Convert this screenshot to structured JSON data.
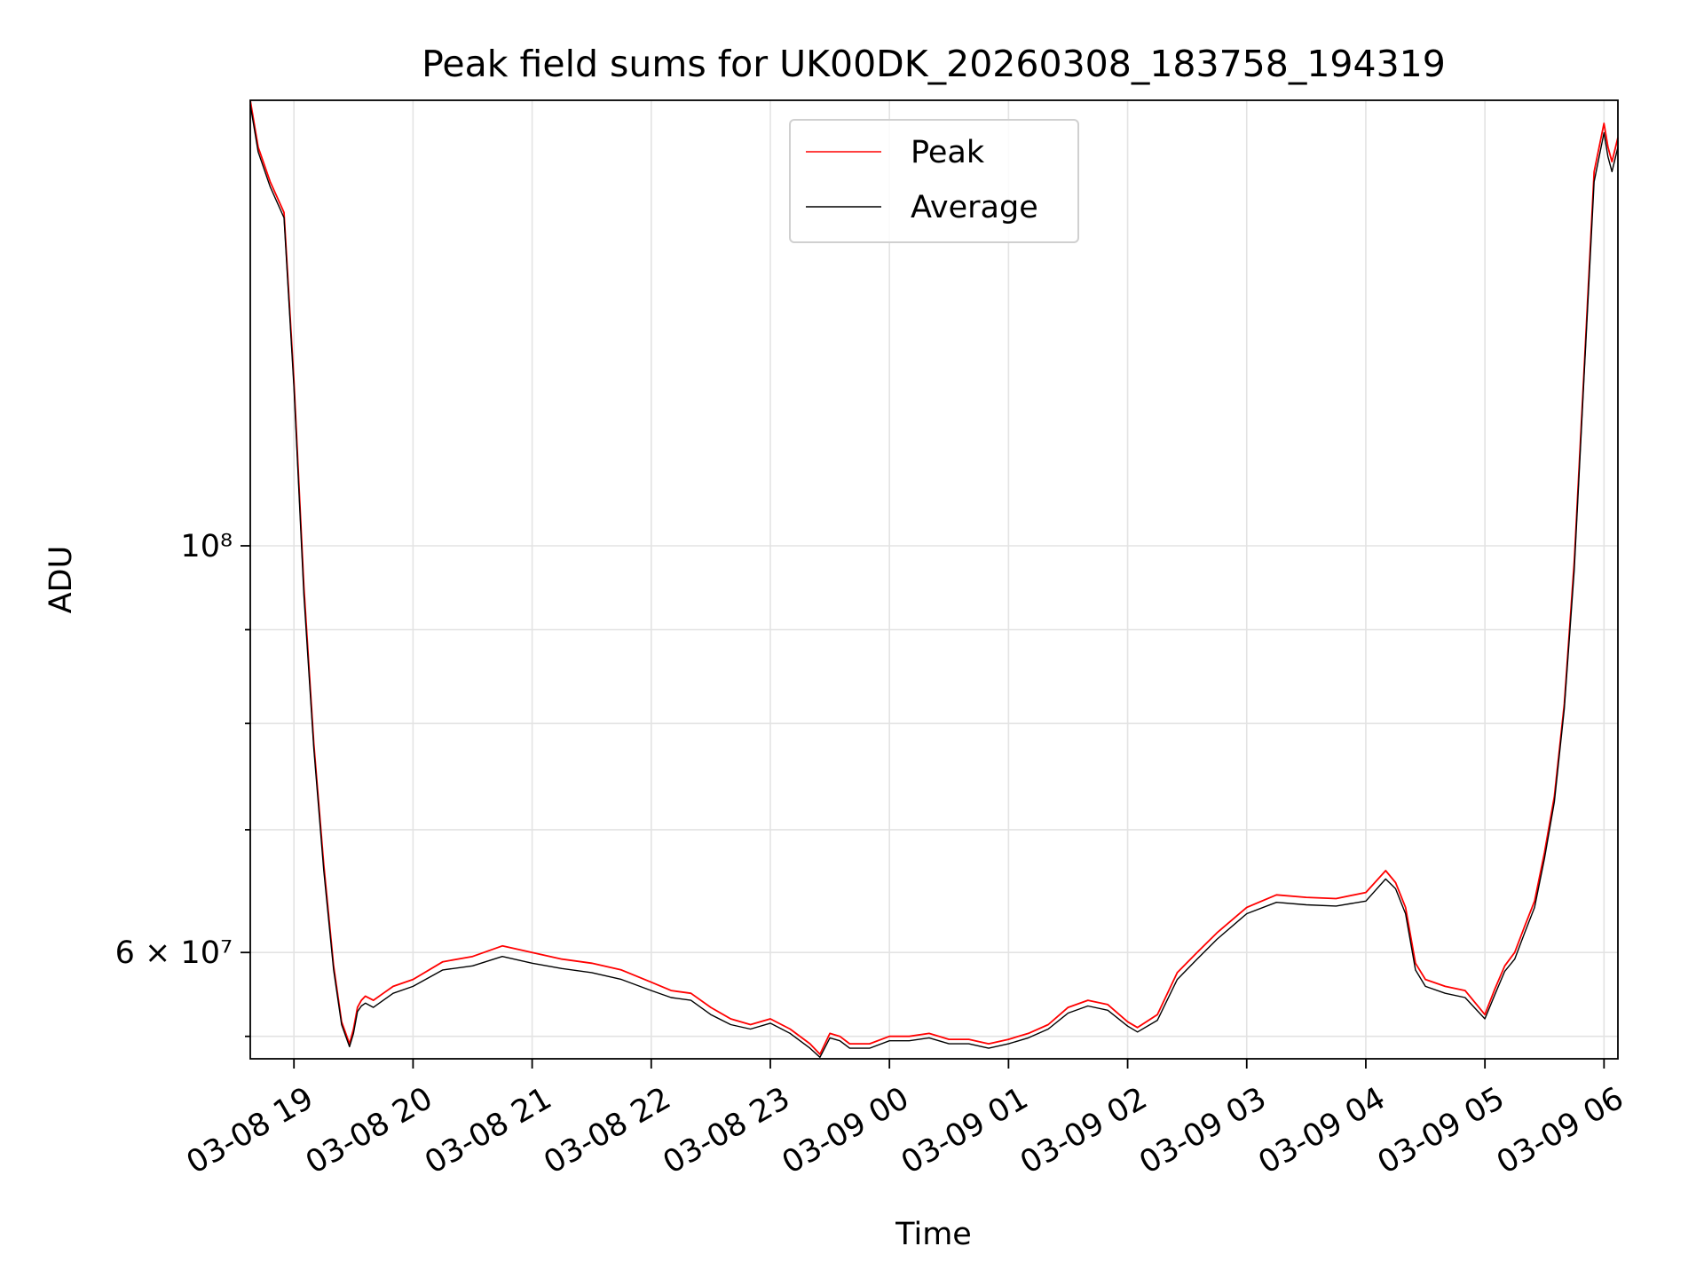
{
  "chart_data": {
    "type": "line",
    "title": "Peak field sums for UK00DK_20260308_183758_194319",
    "xlabel": "Time",
    "ylabel": "ADU",
    "y_scale": "log",
    "grid": true,
    "legend_position": "upper center",
    "xlim": [
      "2026-03-08 18:38",
      "2026-03-09 06:07"
    ],
    "ylim": [
      52500000,
      175000000
    ],
    "x_ticks": [
      {
        "value": "2026-03-08 19:00",
        "label": "03-08 19"
      },
      {
        "value": "2026-03-08 20:00",
        "label": "03-08 20"
      },
      {
        "value": "2026-03-08 21:00",
        "label": "03-08 21"
      },
      {
        "value": "2026-03-08 22:00",
        "label": "03-08 22"
      },
      {
        "value": "2026-03-08 23:00",
        "label": "03-08 23"
      },
      {
        "value": "2026-03-09 00:00",
        "label": "03-09 00"
      },
      {
        "value": "2026-03-09 01:00",
        "label": "03-09 01"
      },
      {
        "value": "2026-03-09 02:00",
        "label": "03-09 02"
      },
      {
        "value": "2026-03-09 03:00",
        "label": "03-09 03"
      },
      {
        "value": "2026-03-09 04:00",
        "label": "03-09 04"
      },
      {
        "value": "2026-03-09 05:00",
        "label": "03-09 05"
      },
      {
        "value": "2026-03-09 06:00",
        "label": "03-09 06"
      }
    ],
    "y_ticks_major": [
      {
        "value": 60000000,
        "label": "6 × 10⁷"
      },
      {
        "value": 100000000,
        "label": "10⁸"
      }
    ],
    "y_ticks_minor": [
      54000000,
      70000000,
      80000000,
      90000000
    ],
    "colors": {
      "peak": "#ff0000",
      "average": "#000000"
    },
    "series": [
      {
        "name": "Peak",
        "color": "#ff0000",
        "x": [
          "2026-03-08 18:38",
          "2026-03-08 18:42",
          "2026-03-08 18:48",
          "2026-03-08 18:55",
          "2026-03-08 19:00",
          "2026-03-08 19:05",
          "2026-03-08 19:10",
          "2026-03-08 19:15",
          "2026-03-08 19:20",
          "2026-03-08 19:24",
          "2026-03-08 19:28",
          "2026-03-08 19:30",
          "2026-03-08 19:32",
          "2026-03-08 19:34",
          "2026-03-08 19:36",
          "2026-03-08 19:40",
          "2026-03-08 19:45",
          "2026-03-08 19:50",
          "2026-03-08 20:00",
          "2026-03-08 20:15",
          "2026-03-08 20:30",
          "2026-03-08 20:45",
          "2026-03-08 21:00",
          "2026-03-08 21:15",
          "2026-03-08 21:30",
          "2026-03-08 21:45",
          "2026-03-08 22:00",
          "2026-03-08 22:10",
          "2026-03-08 22:20",
          "2026-03-08 22:30",
          "2026-03-08 22:40",
          "2026-03-08 22:50",
          "2026-03-08 23:00",
          "2026-03-08 23:10",
          "2026-03-08 23:20",
          "2026-03-08 23:25",
          "2026-03-08 23:30",
          "2026-03-08 23:35",
          "2026-03-08 23:40",
          "2026-03-08 23:50",
          "2026-03-09 00:00",
          "2026-03-09 00:10",
          "2026-03-09 00:20",
          "2026-03-09 00:30",
          "2026-03-09 00:40",
          "2026-03-09 00:50",
          "2026-03-09 01:00",
          "2026-03-09 01:10",
          "2026-03-09 01:20",
          "2026-03-09 01:30",
          "2026-03-09 01:40",
          "2026-03-09 01:50",
          "2026-03-09 02:00",
          "2026-03-09 02:05",
          "2026-03-09 02:15",
          "2026-03-09 02:25",
          "2026-03-09 02:35",
          "2026-03-09 02:45",
          "2026-03-09 03:00",
          "2026-03-09 03:15",
          "2026-03-09 03:30",
          "2026-03-09 03:45",
          "2026-03-09 04:00",
          "2026-03-09 04:10",
          "2026-03-09 04:15",
          "2026-03-09 04:20",
          "2026-03-09 04:25",
          "2026-03-09 04:30",
          "2026-03-09 04:40",
          "2026-03-09 04:50",
          "2026-03-09 05:00",
          "2026-03-09 05:05",
          "2026-03-09 05:10",
          "2026-03-09 05:15",
          "2026-03-09 05:20",
          "2026-03-09 05:25",
          "2026-03-09 05:30",
          "2026-03-09 05:35",
          "2026-03-09 05:40",
          "2026-03-09 05:45",
          "2026-03-09 05:50",
          "2026-03-09 05:55",
          "2026-03-09 06:00",
          "2026-03-09 06:02",
          "2026-03-09 06:04",
          "2026-03-09 06:07"
        ],
        "y": [
          175000000,
          165000000,
          158000000,
          152000000,
          123000000,
          95000000,
          78000000,
          67000000,
          59000000,
          55000000,
          53500000,
          54500000,
          56000000,
          56500000,
          56800000,
          56500000,
          57000000,
          57500000,
          58000000,
          59300000,
          59700000,
          60500000,
          60000000,
          59500000,
          59200000,
          58700000,
          57800000,
          57200000,
          57000000,
          56000000,
          55200000,
          54800000,
          55200000,
          54500000,
          53500000,
          52800000,
          54200000,
          54000000,
          53500000,
          53500000,
          54000000,
          54000000,
          54200000,
          53800000,
          53800000,
          53500000,
          53800000,
          54200000,
          54800000,
          56000000,
          56500000,
          56200000,
          55000000,
          54600000,
          55500000,
          58500000,
          60000000,
          61500000,
          63500000,
          64500000,
          64300000,
          64200000,
          64700000,
          66500000,
          65500000,
          63500000,
          59200000,
          58000000,
          57500000,
          57200000,
          55500000,
          57300000,
          59000000,
          60000000,
          62000000,
          64000000,
          68000000,
          73000000,
          82000000,
          98000000,
          125000000,
          160000000,
          170000000,
          165000000,
          162000000,
          167000000
        ]
      },
      {
        "name": "Average",
        "color": "#000000",
        "x": [
          "2026-03-08 18:38",
          "2026-03-08 18:42",
          "2026-03-08 18:48",
          "2026-03-08 18:55",
          "2026-03-08 19:00",
          "2026-03-08 19:05",
          "2026-03-08 19:10",
          "2026-03-08 19:15",
          "2026-03-08 19:20",
          "2026-03-08 19:24",
          "2026-03-08 19:28",
          "2026-03-08 19:30",
          "2026-03-08 19:32",
          "2026-03-08 19:34",
          "2026-03-08 19:36",
          "2026-03-08 19:40",
          "2026-03-08 19:45",
          "2026-03-08 19:50",
          "2026-03-08 20:00",
          "2026-03-08 20:15",
          "2026-03-08 20:30",
          "2026-03-08 20:45",
          "2026-03-08 21:00",
          "2026-03-08 21:15",
          "2026-03-08 21:30",
          "2026-03-08 21:45",
          "2026-03-08 22:00",
          "2026-03-08 22:10",
          "2026-03-08 22:20",
          "2026-03-08 22:30",
          "2026-03-08 22:40",
          "2026-03-08 22:50",
          "2026-03-08 23:00",
          "2026-03-08 23:10",
          "2026-03-08 23:20",
          "2026-03-08 23:25",
          "2026-03-08 23:30",
          "2026-03-08 23:35",
          "2026-03-08 23:40",
          "2026-03-08 23:50",
          "2026-03-09 00:00",
          "2026-03-09 00:10",
          "2026-03-09 00:20",
          "2026-03-09 00:30",
          "2026-03-09 00:40",
          "2026-03-09 00:50",
          "2026-03-09 01:00",
          "2026-03-09 01:10",
          "2026-03-09 01:20",
          "2026-03-09 01:30",
          "2026-03-09 01:40",
          "2026-03-09 01:50",
          "2026-03-09 02:00",
          "2026-03-09 02:05",
          "2026-03-09 02:15",
          "2026-03-09 02:25",
          "2026-03-09 02:35",
          "2026-03-09 02:45",
          "2026-03-09 03:00",
          "2026-03-09 03:15",
          "2026-03-09 03:30",
          "2026-03-09 03:45",
          "2026-03-09 04:00",
          "2026-03-09 04:10",
          "2026-03-09 04:15",
          "2026-03-09 04:20",
          "2026-03-09 04:25",
          "2026-03-09 04:30",
          "2026-03-09 04:40",
          "2026-03-09 04:50",
          "2026-03-09 05:00",
          "2026-03-09 05:05",
          "2026-03-09 05:10",
          "2026-03-09 05:15",
          "2026-03-09 05:20",
          "2026-03-09 05:25",
          "2026-03-09 05:30",
          "2026-03-09 05:35",
          "2026-03-09 05:40",
          "2026-03-09 05:45",
          "2026-03-09 05:50",
          "2026-03-09 05:55",
          "2026-03-09 06:00",
          "2026-03-09 06:02",
          "2026-03-09 06:04",
          "2026-03-09 06:07"
        ],
        "y": [
          174000000,
          164000000,
          157000000,
          151000000,
          122000000,
          94000000,
          77500000,
          66500000,
          58700000,
          54800000,
          53300000,
          54200000,
          55700000,
          56100000,
          56300000,
          56000000,
          56500000,
          57000000,
          57500000,
          58700000,
          59000000,
          59700000,
          59200000,
          58800000,
          58500000,
          58000000,
          57200000,
          56700000,
          56500000,
          55500000,
          54800000,
          54500000,
          54900000,
          54200000,
          53200000,
          52600000,
          53900000,
          53700000,
          53200000,
          53200000,
          53700000,
          53700000,
          53900000,
          53500000,
          53500000,
          53200000,
          53500000,
          53900000,
          54500000,
          55600000,
          56100000,
          55800000,
          54700000,
          54300000,
          55100000,
          58000000,
          59500000,
          61000000,
          63000000,
          63900000,
          63700000,
          63600000,
          64000000,
          65800000,
          65000000,
          63000000,
          58700000,
          57500000,
          57000000,
          56700000,
          55200000,
          56900000,
          58600000,
          59500000,
          61500000,
          63500000,
          67500000,
          72500000,
          81500000,
          97000000,
          124000000,
          158000000,
          168000000,
          163000000,
          160000000,
          165000000
        ]
      }
    ]
  }
}
